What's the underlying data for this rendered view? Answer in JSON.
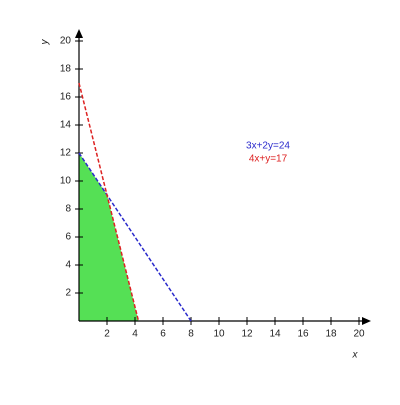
{
  "chart_data": {
    "type": "line",
    "xlabel": "x",
    "ylabel": "y",
    "xlim": [
      0,
      20
    ],
    "ylim": [
      0,
      20
    ],
    "xticks": [
      2,
      4,
      6,
      8,
      10,
      12,
      14,
      16,
      18,
      20
    ],
    "yticks": [
      2,
      4,
      6,
      8,
      10,
      12,
      14,
      16,
      18,
      20
    ],
    "region": {
      "color": "#55e055",
      "x": [
        0,
        0,
        2,
        4.25
      ],
      "y": [
        0,
        12,
        9,
        0
      ]
    },
    "series": [
      {
        "name": "3x+2y=24",
        "color": "#2b2bcc",
        "x": [
          0,
          8
        ],
        "values": [
          12,
          0
        ]
      },
      {
        "name": "4x+y=17",
        "color": "#dd2222",
        "x": [
          0,
          4.25
        ],
        "values": [
          17,
          0
        ]
      }
    ]
  }
}
